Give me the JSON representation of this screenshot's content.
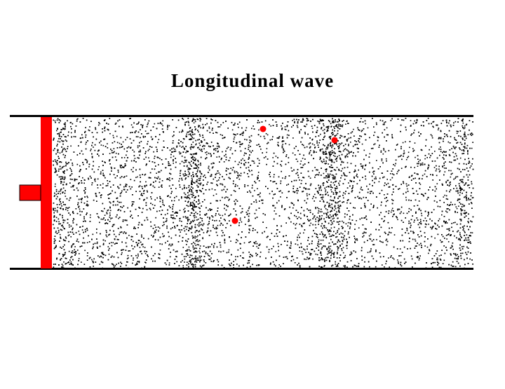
{
  "title": "Longitudinal wave",
  "colors": {
    "piston": "#ff0000",
    "tracer": "#ff0000",
    "particles": "#000000",
    "tube_walls": "#000000",
    "background": "#ffffff"
  }
}
